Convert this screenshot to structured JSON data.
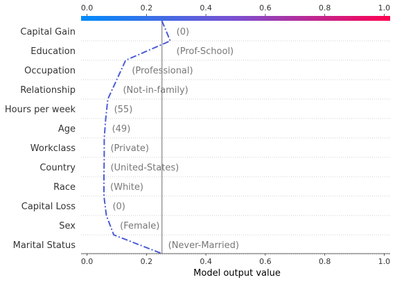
{
  "chart_data": {
    "type": "line",
    "title": "",
    "xlabel": "Model output value",
    "ylabel": "",
    "xlim": [
      -0.02,
      1.02
    ],
    "x_ticks": [
      "0.0",
      "0.2",
      "0.4",
      "0.6",
      "0.8",
      "1.0"
    ],
    "x_tick_values": [
      0.0,
      0.2,
      0.4,
      0.6,
      0.8,
      1.0
    ],
    "base_value": 0.252,
    "start_value": 0.252,
    "colorbar": {
      "from": "#008bfb",
      "mid": "#7b4fd1",
      "to": "#ff0051"
    },
    "line_color": "#4b5bd6",
    "features": [
      {
        "name": "Capital Gain",
        "value": "(0)",
        "output": 0.28
      },
      {
        "name": "Education",
        "value": "(Prof-School)",
        "output": 0.13
      },
      {
        "name": "Occupation",
        "value": "(Professional)",
        "output": 0.1
      },
      {
        "name": "Relationship",
        "value": "(Not-in-family)",
        "output": 0.07
      },
      {
        "name": "Hours per week",
        "value": "(55)",
        "output": 0.063
      },
      {
        "name": "Age",
        "value": "(49)",
        "output": 0.058
      },
      {
        "name": "Workclass",
        "value": "(Private)",
        "output": 0.058
      },
      {
        "name": "Country",
        "value": "(United-States)",
        "output": 0.057
      },
      {
        "name": "Race",
        "value": "(White)",
        "output": 0.057
      },
      {
        "name": "Capital Loss",
        "value": "(0)",
        "output": 0.065
      },
      {
        "name": "Sex",
        "value": "(Female)",
        "output": 0.09
      },
      {
        "name": "Marital Status",
        "value": "(Never-Married)",
        "output": 0.252
      }
    ]
  }
}
